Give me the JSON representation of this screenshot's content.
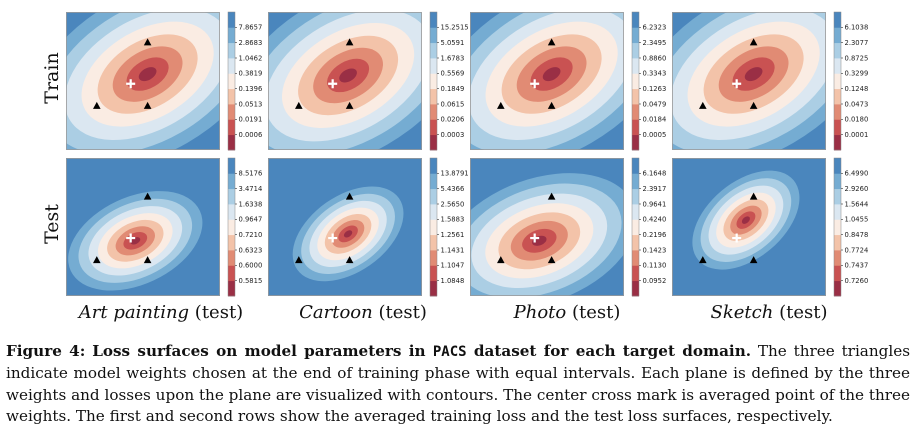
{
  "row_labels": [
    "Train",
    "Test"
  ],
  "domains": [
    {
      "italic": "Art painting",
      "suffix": " (test)"
    },
    {
      "italic": "Cartoon",
      "suffix": " (test)"
    },
    {
      "italic": "Photo",
      "suffix": " (test)"
    },
    {
      "italic": "Sketch",
      "suffix": " (test)"
    }
  ],
  "colors": {
    "levels": [
      "#9a2f45",
      "#c95252",
      "#e18b74",
      "#f3c3a9",
      "#faece3",
      "#dbe7f1",
      "#abcee4",
      "#75acd2",
      "#4a86bd"
    ],
    "marker": "#000000",
    "center": "#ffffff"
  },
  "marker_icons": {
    "triangle": "triangle-icon",
    "center": "cross-icon"
  },
  "panels": [
    {
      "row": 0,
      "col": 0,
      "ticks": [
        "7.8657",
        "2.8683",
        "1.0462",
        "0.3819",
        "0.1396",
        "0.0513",
        "0.0191",
        "0.0006"
      ],
      "contour_center": [
        0.53,
        0.45
      ],
      "contour_tilt": -30,
      "contour_scale": 1.0,
      "triangles": [
        [
          0.53,
          0.22
        ],
        [
          0.2,
          0.68
        ],
        [
          0.53,
          0.68
        ]
      ],
      "cross": [
        0.42,
        0.52
      ]
    },
    {
      "row": 0,
      "col": 1,
      "ticks": [
        "15.2515",
        "5.0591",
        "1.6783",
        "0.5569",
        "0.1849",
        "0.0615",
        "0.0206",
        "0.0003"
      ],
      "contour_center": [
        0.52,
        0.46
      ],
      "contour_tilt": -30,
      "contour_scale": 1.0,
      "triangles": [
        [
          0.53,
          0.22
        ],
        [
          0.2,
          0.68
        ],
        [
          0.53,
          0.68
        ]
      ],
      "cross": [
        0.42,
        0.52
      ]
    },
    {
      "row": 0,
      "col": 2,
      "ticks": [
        "6.2323",
        "2.3495",
        "0.8860",
        "0.3343",
        "0.1263",
        "0.0479",
        "0.0184",
        "0.0005"
      ],
      "contour_center": [
        0.53,
        0.45
      ],
      "contour_tilt": -30,
      "contour_scale": 1.0,
      "triangles": [
        [
          0.53,
          0.22
        ],
        [
          0.2,
          0.68
        ],
        [
          0.53,
          0.68
        ]
      ],
      "cross": [
        0.42,
        0.52
      ]
    },
    {
      "row": 0,
      "col": 3,
      "ticks": [
        "6.1038",
        "2.3077",
        "0.8725",
        "0.3299",
        "0.1248",
        "0.0473",
        "0.0180",
        "0.0001"
      ],
      "contour_center": [
        0.53,
        0.45
      ],
      "contour_tilt": -30,
      "contour_scale": 1.0,
      "triangles": [
        [
          0.53,
          0.22
        ],
        [
          0.2,
          0.68
        ],
        [
          0.53,
          0.68
        ]
      ],
      "cross": [
        0.42,
        0.52
      ]
    },
    {
      "row": 1,
      "col": 0,
      "ticks": [
        "8.5176",
        "3.4714",
        "1.6338",
        "0.9647",
        "0.7210",
        "0.6323",
        "0.6000",
        "0.5815"
      ],
      "contour_center": [
        0.45,
        0.6
      ],
      "contour_tilt": -25,
      "contour_scale": 0.55,
      "triangles": [
        [
          0.53,
          0.28
        ],
        [
          0.2,
          0.74
        ],
        [
          0.53,
          0.74
        ]
      ],
      "cross": [
        0.42,
        0.58
      ]
    },
    {
      "row": 1,
      "col": 1,
      "ticks": [
        "13.8791",
        "5.4366",
        "2.5650",
        "1.5883",
        "1.2561",
        "1.1431",
        "1.1047",
        "1.0848"
      ],
      "contour_center": [
        0.52,
        0.55
      ],
      "contour_tilt": -35,
      "contour_scale": 0.48,
      "triangles": [
        [
          0.53,
          0.28
        ],
        [
          0.2,
          0.74
        ],
        [
          0.53,
          0.74
        ]
      ],
      "cross": [
        0.42,
        0.58
      ]
    },
    {
      "row": 1,
      "col": 2,
      "ticks": [
        "6.1648",
        "2.3917",
        "0.9641",
        "0.4240",
        "0.2196",
        "0.1423",
        "0.1130",
        "0.0952"
      ],
      "contour_center": [
        0.45,
        0.6
      ],
      "contour_tilt": -20,
      "contour_scale": 0.78,
      "triangles": [
        [
          0.53,
          0.28
        ],
        [
          0.2,
          0.74
        ],
        [
          0.53,
          0.74
        ]
      ],
      "cross": [
        0.42,
        0.58
      ]
    },
    {
      "row": 1,
      "col": 3,
      "ticks": [
        "6.4990",
        "2.9260",
        "1.5644",
        "1.0455",
        "0.8478",
        "0.7724",
        "0.7437",
        "0.7260"
      ],
      "contour_center": [
        0.48,
        0.45
      ],
      "contour_tilt": -40,
      "contour_scale": 0.48,
      "triangles": [
        [
          0.53,
          0.28
        ],
        [
          0.2,
          0.74
        ],
        [
          0.53,
          0.74
        ]
      ],
      "cross": [
        0.42,
        0.58
      ]
    }
  ],
  "caption": {
    "label": "Figure 4:",
    "bold_a": "Loss surfaces on model parameters in ",
    "mono": "PACS",
    "bold_b": " dataset for each target domain.",
    "body": " The three triangles indicate model weights chosen at the end of training phase with equal intervals. Each plane is defined by the three weights and losses upon the plane are visualized with contours. The center cross mark is averaged point of the three weights. The first and second rows show the averaged training loss and the test loss surfaces, respectively."
  }
}
